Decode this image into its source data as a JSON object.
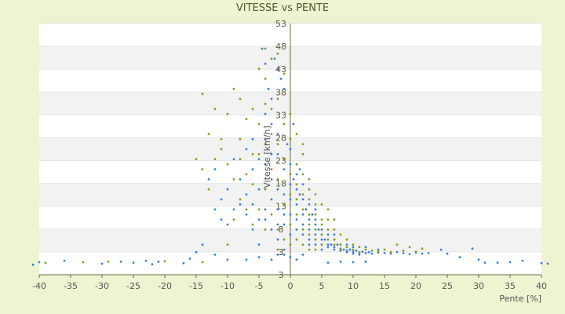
{
  "chart_data": {
    "type": "scatter",
    "title": "VITESSE vs PENTE",
    "xlabel": "Pente [%]",
    "ylabel": "Vitesse [km/h]",
    "xlim": [
      -40,
      40
    ],
    "ylim": [
      3,
      53
    ],
    "x_ticks": [
      "-40",
      "-35",
      "-30",
      "-25",
      "-20",
      "-15",
      "-10",
      "-5",
      "0",
      "5",
      "10",
      "15",
      "20",
      "25",
      "30",
      "35",
      "40"
    ],
    "y_ticks": [
      "3",
      "3",
      "8",
      "13",
      "18",
      "23",
      "28",
      "33",
      "38",
      "43",
      "48",
      "53"
    ],
    "grid": true,
    "legend": "none",
    "colors": {
      "series_a": "#3b7fd9",
      "series_b": "#8a9a1e",
      "band": "#f2f2f2",
      "plot_bg": "#ffffff",
      "axis": "#6b6b40"
    },
    "series": [
      {
        "color": "#3b7fd9",
        "points": [
          [
            -41,
            5
          ],
          [
            -40,
            5.5
          ],
          [
            -36,
            5.8
          ],
          [
            -30,
            5.2
          ],
          [
            -27,
            5.6
          ],
          [
            -25,
            5.4
          ],
          [
            -23,
            5.8
          ],
          [
            -22,
            5.1
          ],
          [
            -21,
            5.6
          ],
          [
            -17,
            5.3
          ],
          [
            -16,
            6.2
          ],
          [
            -15,
            7.5
          ],
          [
            -14,
            9
          ],
          [
            -12,
            7
          ],
          [
            -11,
            14
          ],
          [
            -10,
            13
          ],
          [
            -11,
            18
          ],
          [
            -9,
            16
          ],
          [
            -8,
            17
          ],
          [
            -8,
            22
          ],
          [
            -7,
            15
          ],
          [
            -7,
            19
          ],
          [
            -6,
            24
          ],
          [
            -6,
            12
          ],
          [
            -5,
            20
          ],
          [
            -5,
            9
          ],
          [
            -5,
            26
          ],
          [
            -4.5,
            48
          ],
          [
            -4,
            45
          ],
          [
            -4,
            35
          ],
          [
            -4,
            30
          ],
          [
            -4,
            25
          ],
          [
            -4,
            14
          ],
          [
            -3.5,
            40
          ],
          [
            -3,
            38
          ],
          [
            -3,
            33
          ],
          [
            -3,
            22
          ],
          [
            -3,
            18
          ],
          [
            -3,
            12
          ],
          [
            -2.5,
            46
          ],
          [
            -2,
            44
          ],
          [
            -2,
            31
          ],
          [
            -2,
            27
          ],
          [
            -2,
            20
          ],
          [
            -2,
            16
          ],
          [
            -2,
            10
          ],
          [
            -1.5,
            42
          ],
          [
            -1,
            40
          ],
          [
            -1,
            24
          ],
          [
            -1,
            19
          ],
          [
            -1,
            13
          ],
          [
            -1,
            8
          ],
          [
            -0.5,
            29
          ],
          [
            0,
            25
          ],
          [
            0,
            21
          ],
          [
            0,
            18
          ],
          [
            0,
            15
          ],
          [
            0,
            11
          ],
          [
            0.5,
            33
          ],
          [
            0.5,
            22
          ],
          [
            1,
            20
          ],
          [
            1,
            17
          ],
          [
            1,
            14
          ],
          [
            1,
            12
          ],
          [
            1.5,
            24
          ],
          [
            1.5,
            19
          ],
          [
            2,
            18
          ],
          [
            2,
            15
          ],
          [
            2,
            13
          ],
          [
            2,
            11
          ],
          [
            2.5,
            16
          ],
          [
            3,
            14
          ],
          [
            3,
            12
          ],
          [
            3,
            10
          ],
          [
            3,
            9
          ],
          [
            3.5,
            15
          ],
          [
            4,
            13
          ],
          [
            4,
            11
          ],
          [
            4,
            9
          ],
          [
            4.5,
            12
          ],
          [
            5,
            11
          ],
          [
            5,
            10
          ],
          [
            5,
            9
          ],
          [
            5,
            8
          ],
          [
            5.5,
            10
          ],
          [
            6,
            9
          ],
          [
            6,
            8.5
          ],
          [
            6.5,
            9
          ],
          [
            7,
            8.5
          ],
          [
            7,
            8
          ],
          [
            7.5,
            9
          ],
          [
            8,
            8.2
          ],
          [
            8,
            7.8
          ],
          [
            8.5,
            8
          ],
          [
            9,
            7.8
          ],
          [
            9,
            7.5
          ],
          [
            9.5,
            8
          ],
          [
            10,
            7.6
          ],
          [
            10,
            7.2
          ],
          [
            10.5,
            7.8
          ],
          [
            11,
            7.4
          ],
          [
            11,
            7
          ],
          [
            11.5,
            7.6
          ],
          [
            12,
            7.3
          ],
          [
            12.5,
            7.5
          ],
          [
            13,
            7.2
          ],
          [
            14,
            7.4
          ],
          [
            15,
            7.3
          ],
          [
            16,
            7.2
          ],
          [
            17,
            7.5
          ],
          [
            18,
            7.3
          ],
          [
            19,
            7.1
          ],
          [
            20,
            7.4
          ],
          [
            21,
            7.2
          ],
          [
            22,
            7.3
          ],
          [
            24,
            8
          ],
          [
            25,
            7.2
          ],
          [
            27,
            6.5
          ],
          [
            29,
            8.2
          ],
          [
            30,
            6
          ],
          [
            31,
            5.4
          ],
          [
            33,
            5.4
          ],
          [
            35,
            5.5
          ],
          [
            37,
            5.8
          ],
          [
            40,
            5.3
          ],
          [
            41,
            5.2
          ],
          [
            6,
            5.4
          ],
          [
            8,
            5.6
          ],
          [
            10,
            5.5
          ],
          [
            12,
            5.6
          ],
          [
            -13,
            22
          ],
          [
            -12,
            24
          ],
          [
            -12,
            16
          ],
          [
            -10,
            20
          ],
          [
            -9,
            26
          ],
          [
            -7,
            28
          ],
          [
            -6,
            30
          ],
          [
            -6,
            17
          ],
          [
            -5,
            14
          ],
          [
            -4,
            16
          ],
          [
            -3,
            27
          ],
          [
            -2,
            13
          ],
          [
            -1,
            15
          ],
          [
            0,
            28
          ],
          [
            1,
            23
          ],
          [
            2,
            21
          ],
          [
            3,
            17
          ],
          [
            4,
            14
          ],
          [
            4,
            16
          ],
          [
            5,
            12
          ],
          [
            6,
            11
          ],
          [
            7,
            10
          ],
          [
            7,
            11
          ],
          [
            8,
            9
          ],
          [
            9,
            9
          ],
          [
            10,
            8.5
          ],
          [
            12,
            8.5
          ],
          [
            14,
            8
          ],
          [
            -3,
            6
          ],
          [
            -2,
            7
          ],
          [
            -1,
            7
          ],
          [
            0,
            6.5
          ],
          [
            1,
            6
          ],
          [
            2,
            7
          ],
          [
            -10,
            6
          ],
          [
            -7,
            6
          ],
          [
            -5,
            6.5
          ]
        ]
      },
      {
        "color": "#8a9a1e",
        "points": [
          [
            -39,
            5.4
          ],
          [
            -33,
            5.5
          ],
          [
            -29,
            5.6
          ],
          [
            -20,
            5.7
          ],
          [
            -14,
            5.5
          ],
          [
            -14,
            39
          ],
          [
            -14,
            24
          ],
          [
            -13,
            20
          ],
          [
            -12,
            36
          ],
          [
            -12,
            26
          ],
          [
            -11,
            30
          ],
          [
            -10,
            25
          ],
          [
            -10,
            35
          ],
          [
            -9,
            40
          ],
          [
            -9,
            22
          ],
          [
            -8,
            38
          ],
          [
            -8,
            30
          ],
          [
            -8,
            18
          ],
          [
            -7,
            34
          ],
          [
            -7,
            23
          ],
          [
            -6,
            36
          ],
          [
            -6,
            21
          ],
          [
            -5,
            44
          ],
          [
            -5,
            33
          ],
          [
            -5,
            27
          ],
          [
            -5,
            16
          ],
          [
            -4,
            48
          ],
          [
            -4,
            42
          ],
          [
            -4,
            29
          ],
          [
            -4,
            20
          ],
          [
            -3,
            46
          ],
          [
            -3,
            36
          ],
          [
            -3,
            24
          ],
          [
            -3,
            15
          ],
          [
            -2,
            47
          ],
          [
            -2,
            38
          ],
          [
            -2,
            29
          ],
          [
            -2,
            22
          ],
          [
            -2,
            12
          ],
          [
            -1,
            43
          ],
          [
            -1,
            33
          ],
          [
            -1,
            26
          ],
          [
            -1,
            17
          ],
          [
            -1,
            10
          ],
          [
            0,
            30
          ],
          [
            0,
            23
          ],
          [
            0,
            19
          ],
          [
            0,
            13
          ],
          [
            0,
            9
          ],
          [
            1,
            31
          ],
          [
            1,
            25
          ],
          [
            1,
            18
          ],
          [
            1,
            15
          ],
          [
            1,
            10
          ],
          [
            2,
            29
          ],
          [
            2,
            23
          ],
          [
            2,
            19
          ],
          [
            2,
            16
          ],
          [
            2,
            12
          ],
          [
            2,
            9
          ],
          [
            3,
            22
          ],
          [
            3,
            18
          ],
          [
            3,
            15
          ],
          [
            3,
            13
          ],
          [
            3,
            11
          ],
          [
            3,
            8
          ],
          [
            4,
            19
          ],
          [
            4,
            15
          ],
          [
            4,
            12
          ],
          [
            4,
            10
          ],
          [
            4,
            8
          ],
          [
            5,
            17
          ],
          [
            5,
            14
          ],
          [
            5,
            11
          ],
          [
            5,
            9
          ],
          [
            6,
            14
          ],
          [
            6,
            12
          ],
          [
            6,
            10
          ],
          [
            7,
            12
          ],
          [
            7,
            10
          ],
          [
            7,
            9
          ],
          [
            8,
            11
          ],
          [
            8,
            9
          ],
          [
            8,
            8
          ],
          [
            9,
            10
          ],
          [
            9,
            8.5
          ],
          [
            10,
            9
          ],
          [
            10,
            8
          ],
          [
            11,
            8.5
          ],
          [
            11,
            7.5
          ],
          [
            12,
            8
          ],
          [
            13,
            7.8
          ],
          [
            14,
            7.6
          ],
          [
            15,
            8
          ],
          [
            16,
            7.5
          ],
          [
            17,
            9
          ],
          [
            18,
            7.8
          ],
          [
            19,
            8.5
          ],
          [
            20,
            7.6
          ],
          [
            21,
            8.2
          ],
          [
            -9,
            14
          ],
          [
            -8,
            26
          ],
          [
            -7,
            16
          ],
          [
            -6,
            27
          ],
          [
            -6,
            13
          ],
          [
            -4,
            37
          ],
          [
            -4,
            12
          ],
          [
            -3,
            31
          ],
          [
            -2,
            8
          ],
          [
            0,
            35
          ],
          [
            1,
            21
          ],
          [
            2,
            27
          ],
          [
            3,
            20
          ],
          [
            4,
            17
          ],
          [
            5,
            13
          ],
          [
            6,
            16
          ],
          [
            7,
            14
          ],
          [
            -15,
            26
          ],
          [
            -13,
            31
          ],
          [
            -11,
            28
          ],
          [
            -10,
            9
          ]
        ]
      }
    ]
  }
}
